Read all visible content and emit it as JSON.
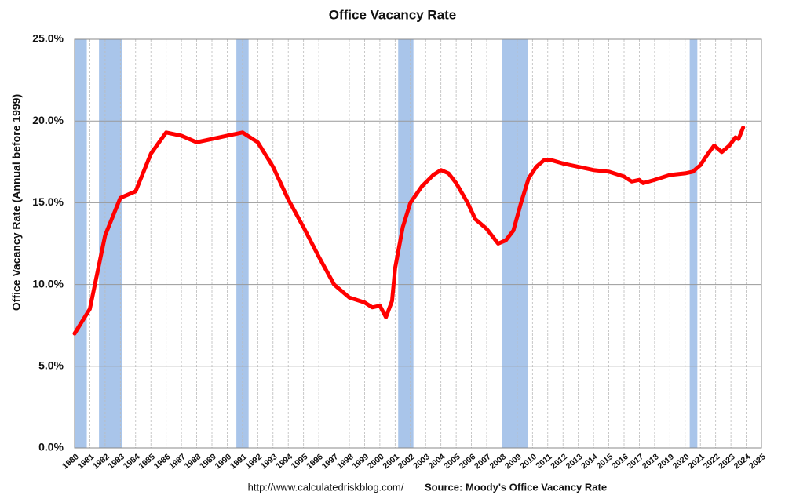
{
  "chart_data": {
    "type": "line",
    "title": "Office Vacancy Rate",
    "ylabel": "Office Vacancy Rate (Annual before 1999)",
    "footer_url": "http://www.calculatedriskblog.com/",
    "footer_source": "Source: Moody's Office Vacancy Rate",
    "xlim": [
      1980,
      2025
    ],
    "xticks": [
      1980,
      1981,
      1982,
      1983,
      1984,
      1985,
      1986,
      1987,
      1988,
      1989,
      1990,
      1991,
      1992,
      1993,
      1994,
      1995,
      1996,
      1997,
      1998,
      1999,
      2000,
      2001,
      2002,
      2003,
      2004,
      2005,
      2006,
      2007,
      2008,
      2009,
      2010,
      2011,
      2012,
      2013,
      2014,
      2015,
      2016,
      2017,
      2018,
      2019,
      2020,
      2021,
      2022,
      2023,
      2024,
      2025
    ],
    "ylim": [
      0,
      25
    ],
    "yticks": [
      {
        "value": 0,
        "label": "0.0%"
      },
      {
        "value": 5,
        "label": "5.0%"
      },
      {
        "value": 10,
        "label": "10.0%"
      },
      {
        "value": 15,
        "label": "15.0%"
      },
      {
        "value": 20,
        "label": "20.0%"
      },
      {
        "value": 25,
        "label": "25.0%"
      }
    ],
    "grid": true,
    "recession_color": "#a9c5ea",
    "recessions": [
      [
        1980.0,
        1980.8
      ],
      [
        1981.6,
        1983.1
      ],
      [
        1990.6,
        1991.4
      ],
      [
        2001.2,
        2002.2
      ],
      [
        2008.0,
        2009.7
      ],
      [
        2020.3,
        2020.8
      ]
    ],
    "x": [
      1980,
      1981,
      1982,
      1983,
      1984,
      1985,
      1986,
      1987,
      1988,
      1989,
      1990,
      1991,
      1992,
      1993,
      1994,
      1995,
      1996,
      1997,
      1998,
      1999,
      1999.5,
      2000,
      2000.4,
      2000.8,
      2001,
      2001.5,
      2002,
      2002.75,
      2003.5,
      2004,
      2004.5,
      2005,
      2005.75,
      2006.25,
      2007,
      2007.75,
      2008.25,
      2008.75,
      2009.25,
      2009.75,
      2010.25,
      2010.75,
      2011.25,
      2012,
      2013,
      2014,
      2015,
      2016,
      2016.5,
      2017,
      2017.25,
      2018,
      2019,
      2020,
      2020.5,
      2021,
      2021.5,
      2021.9,
      2022.4,
      2022.9,
      2023.3,
      2023.5,
      2023.8
    ],
    "series": [
      {
        "name": "Office Vacancy Rate",
        "color": "#ff0000",
        "values": [
          7.0,
          8.5,
          13.0,
          15.3,
          15.7,
          18.0,
          19.3,
          19.1,
          18.7,
          18.9,
          19.1,
          19.3,
          18.7,
          17.2,
          15.2,
          13.5,
          11.7,
          10.0,
          9.2,
          8.9,
          8.6,
          8.7,
          8.0,
          9.0,
          11.0,
          13.5,
          15.0,
          16.0,
          16.7,
          17.0,
          16.8,
          16.2,
          15.0,
          14.0,
          13.4,
          12.5,
          12.7,
          13.3,
          15.0,
          16.5,
          17.2,
          17.6,
          17.6,
          17.4,
          17.2,
          17.0,
          16.9,
          16.6,
          16.3,
          16.4,
          16.2,
          16.4,
          16.7,
          16.8,
          16.9,
          17.3,
          18.0,
          18.5,
          18.1,
          18.5,
          19.0,
          18.9,
          19.6
        ]
      }
    ]
  }
}
